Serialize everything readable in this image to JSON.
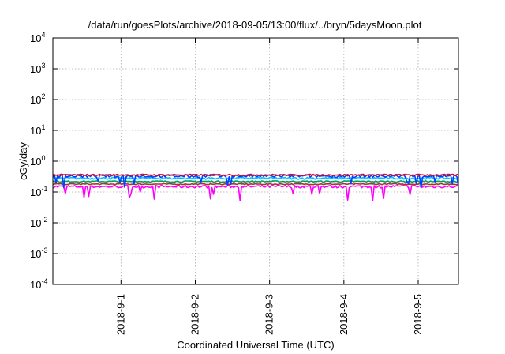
{
  "chart_data": {
    "type": "line",
    "title": "/data/run/goesPlots/archive/2018-09-05/13:00/flux/../bryn/5daysMoon.plot",
    "xlabel": "Coordinated Universal Time (UTC)",
    "ylabel": "cGy/day",
    "yscale": "log",
    "ylim": [
      0.0001,
      10000
    ],
    "xlim": [
      "2018-08-31T02:00",
      "2018-09-05T13:00"
    ],
    "grid": true,
    "y_ticks": [
      {
        "base": "10",
        "exp": "-4",
        "value": 0.0001
      },
      {
        "base": "10",
        "exp": "-3",
        "value": 0.001
      },
      {
        "base": "10",
        "exp": "-2",
        "value": 0.01
      },
      {
        "base": "10",
        "exp": "-1",
        "value": 0.1
      },
      {
        "base": "10",
        "exp": "0",
        "value": 1
      },
      {
        "base": "10",
        "exp": "1",
        "value": 10
      },
      {
        "base": "10",
        "exp": "2",
        "value": 100
      },
      {
        "base": "10",
        "exp": "3",
        "value": 1000
      },
      {
        "base": "10",
        "exp": "4",
        "value": 10000
      }
    ],
    "x_ticks": [
      {
        "label": "2018-9-1",
        "value": "2018-09-01T00:00"
      },
      {
        "label": "2018-9-2",
        "value": "2018-09-02T00:00"
      },
      {
        "label": "2018-9-3",
        "value": "2018-09-03T00:00"
      },
      {
        "label": "2018-9-4",
        "value": "2018-09-04T00:00"
      },
      {
        "label": "2018-9-5",
        "value": "2018-09-05T00:00"
      }
    ],
    "series": [
      {
        "color": "#ff00ff",
        "base": 0.15,
        "spread": 0.1,
        "dips": true
      },
      {
        "color": "#b03030",
        "base": 0.18,
        "spread": 0.04,
        "dips": false
      },
      {
        "color": "#00a060",
        "base": 0.22,
        "spread": 0.05,
        "dips": false
      },
      {
        "color": "#00c0ff",
        "base": 0.28,
        "spread": 0.08,
        "dips": false
      },
      {
        "color": "#0040ff",
        "base": 0.33,
        "spread": 0.1,
        "dips": true
      },
      {
        "color": "#ff0000",
        "base": 0.36,
        "spread": 0.05,
        "dips": false
      }
    ]
  }
}
